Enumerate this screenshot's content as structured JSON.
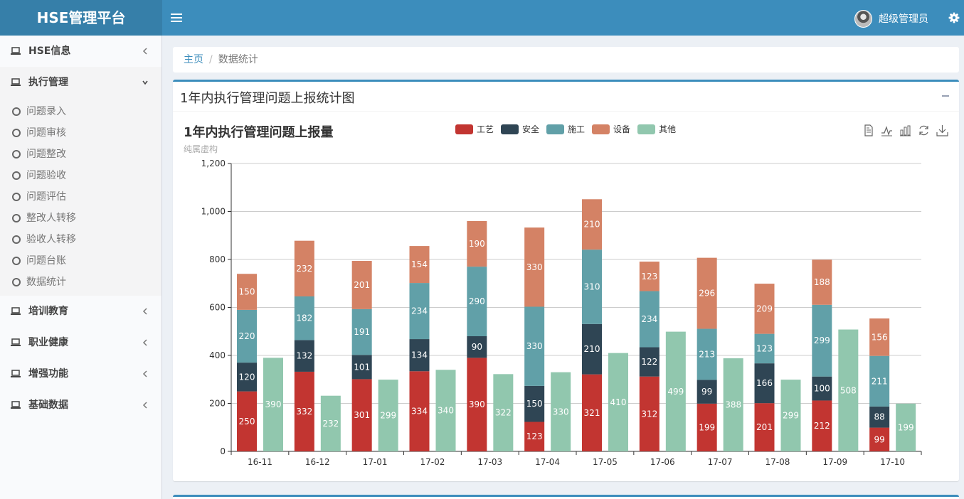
{
  "header": {
    "logo": "HSE管理平台",
    "user_name": "超级管理员"
  },
  "sidebar": {
    "items": [
      {
        "label": "HSE信息",
        "open": false
      },
      {
        "label": "执行管理",
        "open": true,
        "children": [
          "问题录入",
          "问题审核",
          "问题整改",
          "问题验收",
          "问题评估",
          "整改人转移",
          "验收人转移",
          "问题台账",
          "数据统计"
        ]
      },
      {
        "label": "培训教育",
        "open": false
      },
      {
        "label": "职业健康",
        "open": false
      },
      {
        "label": "增强功能",
        "open": false
      },
      {
        "label": "基础数据",
        "open": false
      }
    ]
  },
  "breadcrumb": {
    "home": "主页",
    "current": "数据统计"
  },
  "box": {
    "title": "1年内执行管理问题上报统计图"
  },
  "colors": {
    "header": "#3c8dbc",
    "工艺": "#c23531",
    "安全": "#2f4554",
    "施工": "#61a0a8",
    "设备": "#d48265",
    "其他": "#91c7ae"
  },
  "chart_data": {
    "type": "bar",
    "title": "1年内执行管理问题上报量",
    "subtitle": "纯属虚构",
    "categories": [
      "16-11",
      "16-12",
      "17-01",
      "17-02",
      "17-03",
      "17-04",
      "17-05",
      "17-06",
      "17-07",
      "17-08",
      "17-09",
      "17-10"
    ],
    "ylim": [
      0,
      1200
    ],
    "yticks": [
      "0",
      "200",
      "400",
      "600",
      "800",
      "1,000",
      "1,200"
    ],
    "stacked_series": [
      {
        "name": "工艺",
        "values": [
          250,
          332,
          301,
          334,
          390,
          123,
          321,
          312,
          199,
          201,
          212,
          99
        ]
      },
      {
        "name": "安全",
        "values": [
          120,
          132,
          101,
          134,
          90,
          150,
          210,
          122,
          99,
          166,
          100,
          88
        ]
      },
      {
        "name": "施工",
        "values": [
          220,
          182,
          191,
          234,
          290,
          330,
          310,
          234,
          213,
          123,
          299,
          211
        ]
      },
      {
        "name": "设备",
        "values": [
          150,
          232,
          201,
          154,
          190,
          330,
          210,
          123,
          296,
          209,
          188,
          156
        ]
      }
    ],
    "separate_series": {
      "name": "其他",
      "values": [
        390,
        232,
        299,
        340,
        322,
        330,
        410,
        499,
        388,
        299,
        508,
        199
      ]
    },
    "legend": [
      "工艺",
      "安全",
      "施工",
      "设备",
      "其他"
    ],
    "legend_position": "top-center",
    "grid": true,
    "toolbox": [
      "data-view-icon",
      "line-chart-icon",
      "bar-chart-icon",
      "restore-icon",
      "download-icon"
    ]
  }
}
